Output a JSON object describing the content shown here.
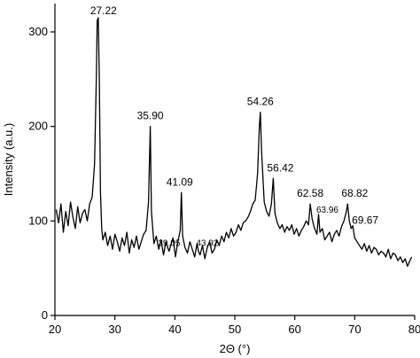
{
  "chart_data": {
    "type": "line",
    "xlabel": "2Θ (°)",
    "ylabel": "Intensity (a.u.)",
    "xlim": [
      20,
      80
    ],
    "ylim": [
      0,
      330
    ],
    "xticks": [
      20,
      30,
      40,
      50,
      60,
      70,
      80
    ],
    "yticks": [
      0,
      100,
      200,
      300
    ],
    "grid": false,
    "legend": "none",
    "line_color": "#000000",
    "peaks": [
      {
        "label": "27.22",
        "x": 27.22,
        "y": 315
      },
      {
        "label": "35.90",
        "x": 35.9,
        "y": 200
      },
      {
        "label": "39.05",
        "x": 39.05,
        "y": 70
      },
      {
        "label": "41.09",
        "x": 41.09,
        "y": 130
      },
      {
        "label": "43.92",
        "x": 43.92,
        "y": 70
      },
      {
        "label": "54.26",
        "x": 54.26,
        "y": 215
      },
      {
        "label": "56.42",
        "x": 56.42,
        "y": 145
      },
      {
        "label": "62.58",
        "x": 62.58,
        "y": 118
      },
      {
        "label": "63.96",
        "x": 63.96,
        "y": 107
      },
      {
        "label": "68.82",
        "x": 68.82,
        "y": 118
      },
      {
        "label": "69.67",
        "x": 69.67,
        "y": 95
      }
    ],
    "series": [
      {
        "x": [
          20.2,
          20.6,
          21.0,
          21.4,
          21.8,
          22.2,
          22.6,
          23.0,
          23.4,
          23.8,
          24.2,
          24.6,
          25.0,
          25.4,
          25.8,
          26.2,
          26.6,
          26.9,
          27.05,
          27.22,
          27.4,
          27.6,
          27.8,
          28.0,
          28.4,
          28.8,
          29.2,
          29.6,
          30.0,
          30.4,
          30.8,
          31.2,
          31.6,
          32.0,
          32.4,
          32.8,
          33.2,
          33.6,
          34.0,
          34.4,
          34.8,
          35.2,
          35.6,
          35.9,
          36.1,
          36.5,
          36.9,
          37.3,
          37.7,
          38.1,
          38.5,
          38.8,
          39.05,
          39.3,
          39.7,
          40.1,
          40.5,
          40.9,
          41.09,
          41.3,
          41.7,
          42.1,
          42.5,
          42.9,
          43.3,
          43.7,
          43.92,
          44.2,
          44.6,
          45.0,
          45.4,
          45.8,
          46.2,
          46.6,
          47.0,
          47.4,
          47.8,
          48.2,
          48.6,
          49.0,
          49.4,
          49.8,
          50.2,
          50.6,
          51.0,
          51.4,
          51.8,
          52.2,
          52.6,
          53.0,
          53.4,
          53.8,
          54.1,
          54.26,
          54.5,
          54.9,
          55.3,
          55.7,
          56.1,
          56.42,
          56.7,
          57.1,
          57.5,
          57.9,
          58.3,
          58.7,
          59.1,
          59.5,
          59.9,
          60.3,
          60.7,
          61.1,
          61.5,
          61.9,
          62.3,
          62.58,
          62.9,
          63.3,
          63.7,
          63.96,
          64.2,
          64.6,
          65.0,
          65.4,
          65.8,
          66.2,
          66.6,
          67.0,
          67.4,
          67.8,
          68.2,
          68.6,
          68.82,
          69.1,
          69.4,
          69.67,
          70.0,
          70.4,
          70.8,
          71.2,
          71.6,
          72.0,
          72.4,
          72.8,
          73.2,
          73.6,
          74.0,
          74.4,
          74.8,
          75.2,
          75.6,
          76.0,
          76.4,
          76.8,
          77.2,
          77.6,
          78.0,
          78.4,
          78.8,
          79.2,
          79.5
        ],
        "y": [
          112,
          98,
          118,
          88,
          110,
          95,
          120,
          104,
          92,
          115,
          98,
          108,
          112,
          100,
          118,
          125,
          160,
          250,
          312,
          315,
          250,
          130,
          92,
          80,
          88,
          74,
          84,
          70,
          86,
          78,
          68,
          82,
          74,
          88,
          66,
          80,
          72,
          84,
          70,
          78,
          86,
          90,
          120,
          200,
          110,
          76,
          84,
          70,
          80,
          64,
          78,
          72,
          68,
          74,
          82,
          62,
          78,
          90,
          130,
          84,
          72,
          66,
          78,
          70,
          62,
          76,
          68,
          64,
          74,
          60,
          72,
          78,
          66,
          70,
          80,
          74,
          84,
          78,
          88,
          82,
          92,
          84,
          88,
          96,
          90,
          98,
          100,
          104,
          110,
          118,
          122,
          150,
          200,
          215,
          170,
          120,
          110,
          105,
          118,
          145,
          108,
          98,
          92,
          96,
          88,
          94,
          90,
          96,
          86,
          92,
          84,
          90,
          94,
          100,
          96,
          118,
          102,
          92,
          86,
          107,
          88,
          92,
          80,
          84,
          88,
          78,
          86,
          90,
          84,
          94,
          100,
          110,
          118,
          100,
          92,
          95,
          82,
          78,
          74,
          70,
          76,
          68,
          74,
          66,
          72,
          70,
          64,
          68,
          66,
          62,
          70,
          60,
          66,
          64,
          58,
          62,
          56,
          60,
          52,
          58,
          62
        ]
      }
    ]
  }
}
